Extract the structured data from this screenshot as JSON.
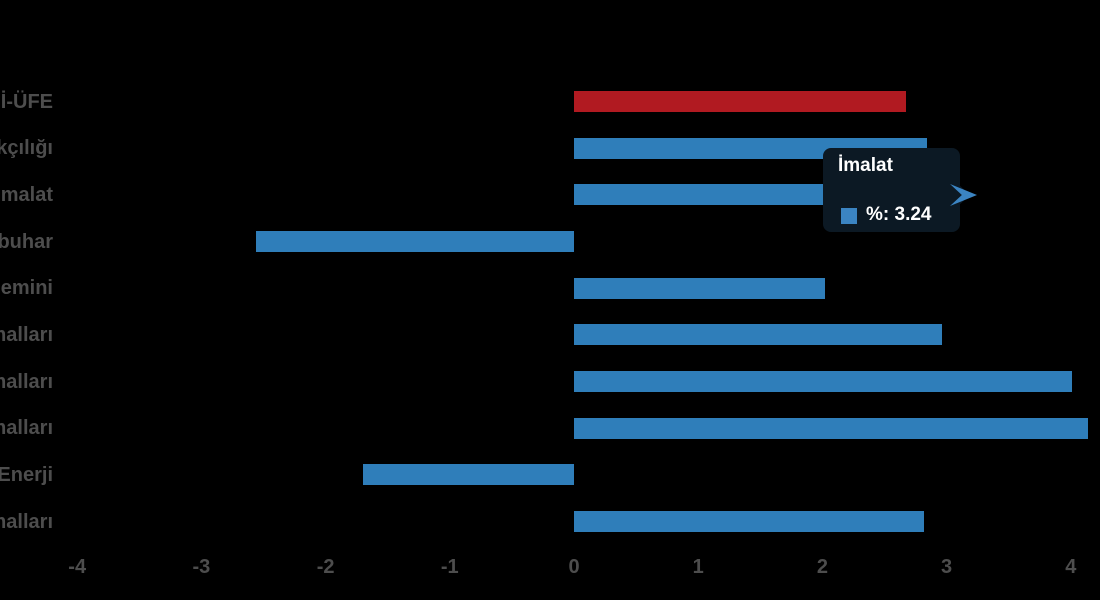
{
  "colors": {
    "background": "#000000",
    "bar_blue": "#2f7eba",
    "bar_red": "#b11a21",
    "tooltip_bg": "#0c1924",
    "tooltip_accent_blue": "#3b84c2",
    "axis_text_gray": "#4d4d4d",
    "tooltip_text": "#ffffff"
  },
  "chart_data": {
    "type": "bar",
    "orientation": "horizontal",
    "title": "",
    "xlabel": "",
    "ylabel": "",
    "categories": [
      "İ-ÜFE",
      "kçılığı",
      "malat",
      "buhar",
      "emini",
      "malları",
      "malları",
      "malları",
      "Enerji",
      "malları"
    ],
    "values": [
      2.67,
      2.84,
      3.24,
      -2.56,
      2.02,
      2.96,
      4.01,
      4.14,
      -1.7,
      2.82
    ],
    "series_colors": [
      "#b11a21",
      "#2f7eba",
      "#2f7eba",
      "#2f7eba",
      "#2f7eba",
      "#2f7eba",
      "#2f7eba",
      "#2f7eba",
      "#2f7eba",
      "#2f7eba"
    ],
    "x_tick_labels": [
      "-4",
      "-3",
      "-2",
      "-1",
      "0",
      "1",
      "2",
      "3",
      "4"
    ],
    "x_tick_values": [
      -4,
      -3,
      -2,
      -1,
      0,
      1,
      2,
      3,
      4
    ],
    "xlim": [
      -4.62,
      4.23
    ],
    "grid": false,
    "legend_position": "none"
  },
  "tooltip": {
    "title": "İmalat",
    "value_label": "%: 3.24",
    "target_row_index": 2
  }
}
